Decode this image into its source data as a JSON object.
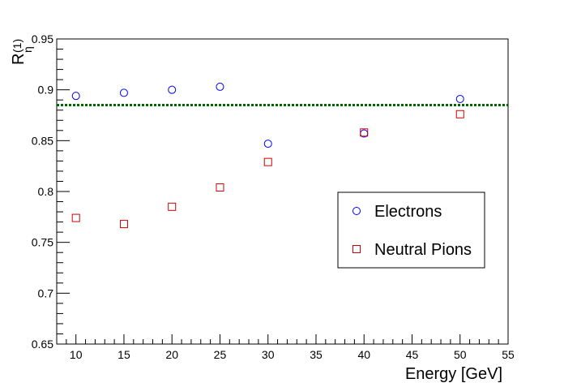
{
  "chart_data": {
    "type": "scatter",
    "title": "",
    "xlabel": "Energy [GeV]",
    "ylabel": "R",
    "ylabel_superscript": "(1)",
    "ylabel_subscript": "η",
    "xlim": [
      8,
      55
    ],
    "ylim": [
      0.65,
      0.95
    ],
    "x_ticks": [
      "10",
      "15",
      "20",
      "25",
      "30",
      "35",
      "40",
      "45",
      "50",
      "55"
    ],
    "y_ticks": [
      "0.65",
      "0.7",
      "0.75",
      "0.8",
      "0.85",
      "0.9",
      "0.95"
    ],
    "grid": false,
    "series": [
      {
        "name": "Electrons",
        "marker": "open-circle",
        "color": "#0000ff",
        "x": [
          10,
          15,
          20,
          25,
          30,
          40,
          50
        ],
        "y": [
          0.894,
          0.897,
          0.9,
          0.903,
          0.847,
          0.857,
          0.891
        ]
      },
      {
        "name": "Neutral Pions",
        "marker": "open-square",
        "color": "#cc0000",
        "x": [
          10,
          15,
          20,
          25,
          30,
          40,
          50
        ],
        "y": [
          0.774,
          0.768,
          0.785,
          0.804,
          0.829,
          0.858,
          0.876
        ]
      }
    ],
    "reference_line": {
      "y": 0.885,
      "style": "dotted",
      "color": "#006600"
    },
    "legend": {
      "position": "middle-right",
      "entries": [
        "Electrons",
        "Neutral Pions"
      ]
    }
  }
}
